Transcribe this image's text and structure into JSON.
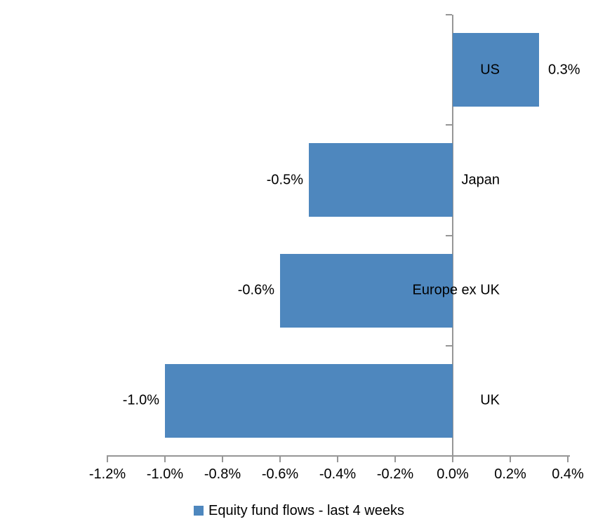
{
  "chart_data": {
    "type": "bar",
    "orientation": "horizontal",
    "categories": [
      "US",
      "Japan",
      "Europe ex UK",
      "UK"
    ],
    "values": [
      0.3,
      -0.5,
      -0.6,
      -1.0
    ],
    "data_labels": [
      "0.3%",
      "-0.5%",
      "-0.6%",
      "-1.0%"
    ],
    "x_tick_values": [
      -1.2,
      -1.0,
      -0.8,
      -0.6,
      -0.4,
      -0.2,
      0.0,
      0.2,
      0.4
    ],
    "x_tick_labels": [
      "-1.2%",
      "-1.0%",
      "-0.8%",
      "-0.6%",
      "-0.4%",
      "-0.2%",
      "0.0%",
      "0.2%",
      "0.4%"
    ],
    "xlim": [
      -1.2,
      0.4
    ],
    "title": "",
    "xlabel": "",
    "ylabel": "",
    "grid": false,
    "legend_position": "bottom",
    "legend": {
      "label": "Equity fund flows - last 4 weeks"
    },
    "colors": {
      "bar": "#4E87BE",
      "axis": "#969696",
      "text": "#000000",
      "background": "#FFFFFF"
    }
  }
}
